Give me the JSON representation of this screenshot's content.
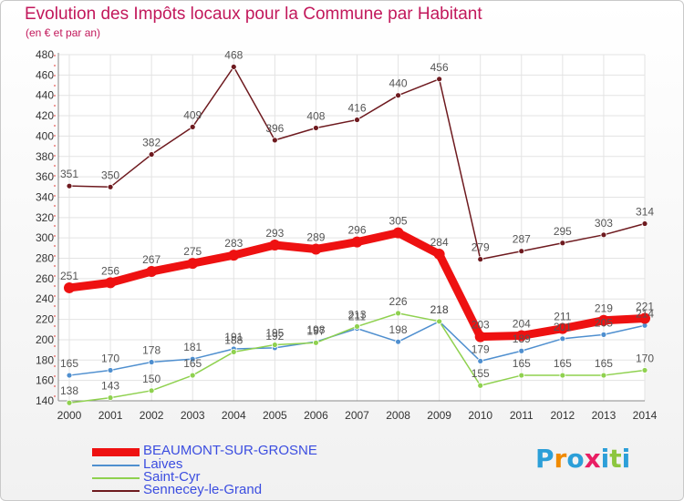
{
  "title": "Evolution des Impôts locaux pour la Commune par Habitant",
  "subtitle": "(en € et par an)",
  "logo": {
    "text": "Proxiti",
    "colors": [
      "#2c9fd8",
      "#f08a00",
      "#2c9fd8",
      "#e91e63",
      "#2c9fd8",
      "#8cc63f",
      "#2c9fd8"
    ]
  },
  "chart_data": {
    "type": "line",
    "x": [
      2000,
      2001,
      2002,
      2003,
      2004,
      2005,
      2006,
      2007,
      2008,
      2009,
      2010,
      2011,
      2012,
      2013,
      2014
    ],
    "ylim": [
      140,
      480
    ],
    "yticks": [
      140,
      160,
      180,
      200,
      220,
      240,
      260,
      280,
      300,
      320,
      340,
      360,
      380,
      400,
      420,
      440,
      460,
      480
    ],
    "grid": true,
    "legend_position": "bottom-left",
    "series": [
      {
        "name": "BEAUMONT-SUR-GROSNE",
        "color": "#ee1111",
        "values": [
          251,
          256,
          267,
          275,
          283,
          293,
          289,
          296,
          305,
          284,
          203,
          204,
          211,
          219,
          221
        ]
      },
      {
        "name": "Laives",
        "color": "#4f8fcf",
        "values": [
          165,
          170,
          178,
          181,
          191,
          192,
          198,
          211,
          198,
          218,
          179,
          189,
          201,
          205,
          214
        ]
      },
      {
        "name": "Saint-Cyr",
        "color": "#8fd14f",
        "values": [
          138,
          143,
          150,
          165,
          188,
          195,
          197,
          213,
          226,
          218,
          155,
          165,
          165,
          165,
          170
        ]
      },
      {
        "name": "Sennecey-le-Grand",
        "color": "#6e1a1f",
        "values": [
          351,
          350,
          382,
          409,
          468,
          396,
          408,
          416,
          440,
          456,
          279,
          287,
          295,
          303,
          314
        ]
      }
    ]
  }
}
